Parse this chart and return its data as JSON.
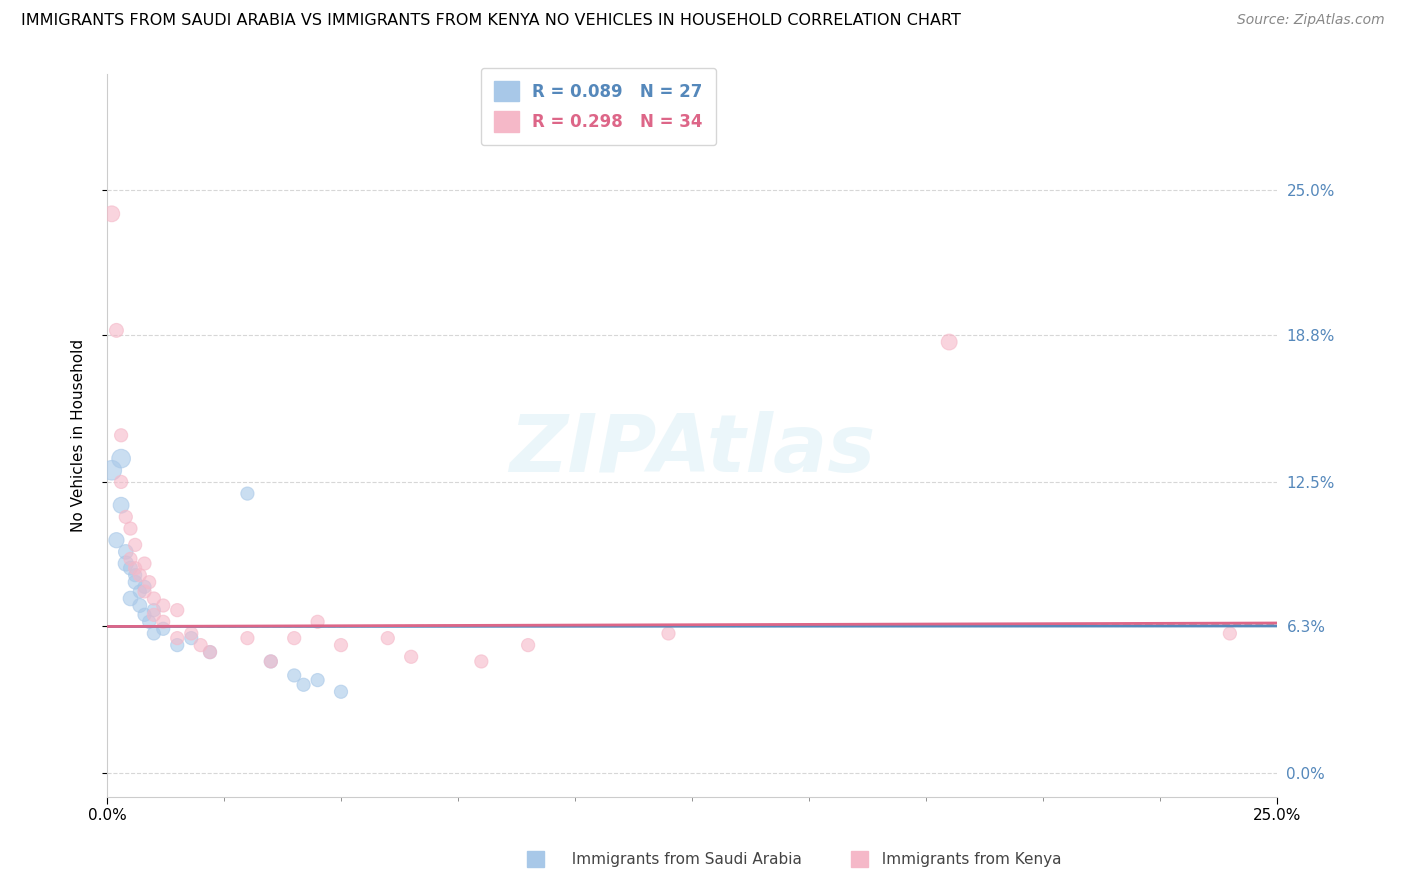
{
  "title": "IMMIGRANTS FROM SAUDI ARABIA VS IMMIGRANTS FROM KENYA NO VEHICLES IN HOUSEHOLD CORRELATION CHART",
  "source": "Source: ZipAtlas.com",
  "ylabel": "No Vehicles in Household",
  "watermark": "ZIPAtlas",
  "legend_r1": "R = 0.089",
  "legend_n1": "N = 27",
  "legend_r2": "R = 0.298",
  "legend_n2": "N = 34",
  "color_blue": "#a8c8e8",
  "color_pink": "#f5b8c8",
  "color_blue_line": "#5588bb",
  "color_pink_line": "#dd6688",
  "color_dashed": "#aaaaaa",
  "xlim": [
    0.0,
    0.25
  ],
  "ylim": [
    -0.01,
    0.3
  ],
  "ytick_values": [
    0.0,
    0.063,
    0.125,
    0.188,
    0.25
  ],
  "ytick_right_labels": [
    "0.0%",
    "6.3%",
    "12.5%",
    "18.8%",
    "25.0%"
  ],
  "xtick_values": [
    0.0,
    0.25
  ],
  "xtick_labels": [
    "0.0%",
    "25.0%"
  ],
  "saudi_scatter": [
    [
      0.001,
      0.13
    ],
    [
      0.002,
      0.1
    ],
    [
      0.003,
      0.135
    ],
    [
      0.003,
      0.115
    ],
    [
      0.004,
      0.095
    ],
    [
      0.004,
      0.09
    ],
    [
      0.005,
      0.088
    ],
    [
      0.005,
      0.075
    ],
    [
      0.006,
      0.085
    ],
    [
      0.006,
      0.082
    ],
    [
      0.007,
      0.078
    ],
    [
      0.007,
      0.072
    ],
    [
      0.008,
      0.08
    ],
    [
      0.008,
      0.068
    ],
    [
      0.009,
      0.065
    ],
    [
      0.01,
      0.07
    ],
    [
      0.01,
      0.06
    ],
    [
      0.012,
      0.062
    ],
    [
      0.015,
      0.055
    ],
    [
      0.018,
      0.058
    ],
    [
      0.022,
      0.052
    ],
    [
      0.03,
      0.12
    ],
    [
      0.035,
      0.048
    ],
    [
      0.04,
      0.042
    ],
    [
      0.042,
      0.038
    ],
    [
      0.045,
      0.04
    ],
    [
      0.05,
      0.035
    ]
  ],
  "kenya_scatter": [
    [
      0.001,
      0.24
    ],
    [
      0.002,
      0.19
    ],
    [
      0.003,
      0.145
    ],
    [
      0.003,
      0.125
    ],
    [
      0.004,
      0.11
    ],
    [
      0.005,
      0.092
    ],
    [
      0.005,
      0.105
    ],
    [
      0.006,
      0.098
    ],
    [
      0.006,
      0.088
    ],
    [
      0.007,
      0.085
    ],
    [
      0.008,
      0.09
    ],
    [
      0.008,
      0.078
    ],
    [
      0.009,
      0.082
    ],
    [
      0.01,
      0.075
    ],
    [
      0.01,
      0.068
    ],
    [
      0.012,
      0.072
    ],
    [
      0.012,
      0.065
    ],
    [
      0.015,
      0.07
    ],
    [
      0.015,
      0.058
    ],
    [
      0.018,
      0.06
    ],
    [
      0.02,
      0.055
    ],
    [
      0.022,
      0.052
    ],
    [
      0.03,
      0.058
    ],
    [
      0.035,
      0.048
    ],
    [
      0.04,
      0.058
    ],
    [
      0.045,
      0.065
    ],
    [
      0.05,
      0.055
    ],
    [
      0.06,
      0.058
    ],
    [
      0.065,
      0.05
    ],
    [
      0.08,
      0.048
    ],
    [
      0.09,
      0.055
    ],
    [
      0.12,
      0.06
    ],
    [
      0.18,
      0.185
    ],
    [
      0.24,
      0.06
    ]
  ],
  "saudi_sizes": [
    200,
    120,
    180,
    130,
    110,
    120,
    100,
    110,
    90,
    100,
    90,
    100,
    90,
    90,
    90,
    90,
    90,
    90,
    90,
    90,
    90,
    90,
    90,
    90,
    90,
    90,
    90
  ],
  "kenya_sizes": [
    130,
    100,
    90,
    90,
    90,
    90,
    90,
    90,
    90,
    90,
    90,
    90,
    90,
    90,
    90,
    90,
    90,
    90,
    90,
    90,
    90,
    90,
    90,
    90,
    90,
    90,
    90,
    90,
    90,
    90,
    90,
    90,
    130,
    90
  ],
  "blue_line_params": [
    0.063,
    0.00089
  ],
  "pink_line_params": [
    0.063,
    0.00596
  ],
  "dashed_line_params": [
    0.063,
    0.0035
  ]
}
